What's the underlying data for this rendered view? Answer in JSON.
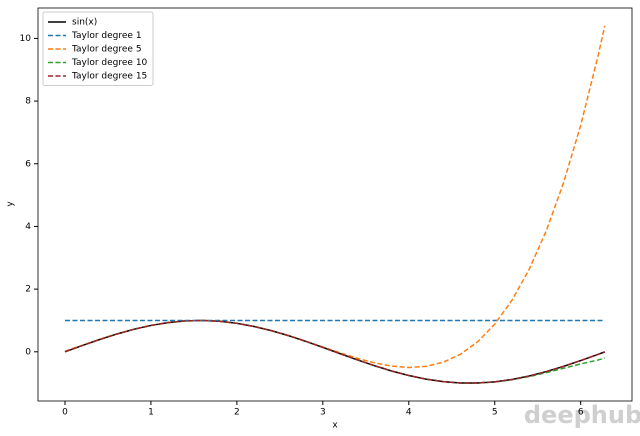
{
  "chart_data": {
    "type": "line",
    "x_label": "x",
    "y_label": "y",
    "x": [
      0,
      0.2,
      0.4,
      0.6,
      0.8,
      1.0,
      1.2,
      1.4,
      1.6,
      1.8,
      2.0,
      2.2,
      2.4,
      2.6,
      2.8,
      3.0,
      3.2,
      3.4,
      3.6,
      3.8,
      4.0,
      4.2,
      4.4,
      4.6,
      4.8,
      5.0,
      5.2,
      5.4,
      5.6,
      5.8,
      6.0,
      6.2,
      6.28
    ],
    "series": [
      {
        "name": "sin(x)",
        "color": "#000000",
        "dash": false,
        "values": [
          0,
          0.199,
          0.389,
          0.565,
          0.717,
          0.841,
          0.932,
          0.985,
          1.0,
          0.974,
          0.909,
          0.808,
          0.675,
          0.516,
          0.335,
          0.141,
          -0.058,
          -0.256,
          -0.443,
          -0.612,
          -0.757,
          -0.872,
          -0.952,
          -0.994,
          -0.996,
          -0.959,
          -0.883,
          -0.773,
          -0.631,
          -0.465,
          -0.279,
          -0.083,
          -0.003
        ]
      },
      {
        "name": "Taylor degree 1",
        "color": "#1f77b4",
        "dash": true,
        "values": [
          1,
          1,
          1,
          1,
          1,
          1,
          1,
          1,
          1,
          1,
          1,
          1,
          1,
          1,
          1,
          1,
          1,
          1,
          1,
          1,
          1,
          1,
          1,
          1,
          1,
          1,
          1,
          1,
          1,
          1,
          1,
          1,
          1
        ]
      },
      {
        "name": "Taylor degree 5",
        "color": "#ff7f0e",
        "dash": true,
        "values": [
          0.02,
          0.208,
          0.393,
          0.566,
          0.718,
          0.842,
          0.932,
          0.985,
          1.0,
          0.974,
          0.909,
          0.809,
          0.676,
          0.517,
          0.34,
          0.153,
          -0.034,
          -0.207,
          -0.352,
          -0.456,
          -0.5,
          -0.465,
          -0.333,
          -0.08,
          0.317,
          0.882,
          1.643,
          2.627,
          3.864,
          5.387,
          7.227,
          9.418,
          10.4
        ]
      },
      {
        "name": "Taylor degree 10",
        "color": "#2ca02c",
        "dash": true,
        "values": [
          0,
          0.199,
          0.389,
          0.565,
          0.717,
          0.841,
          0.932,
          0.985,
          1.0,
          0.974,
          0.909,
          0.808,
          0.675,
          0.516,
          0.335,
          0.141,
          -0.058,
          -0.256,
          -0.443,
          -0.612,
          -0.757,
          -0.872,
          -0.952,
          -0.994,
          -0.997,
          -0.964,
          -0.893,
          -0.792,
          -0.666,
          -0.526,
          -0.387,
          -0.264,
          -0.2
        ]
      },
      {
        "name": "Taylor degree 15",
        "color": "#a0202a",
        "dash": true,
        "values": [
          0,
          0.199,
          0.389,
          0.565,
          0.717,
          0.841,
          0.932,
          0.985,
          1.0,
          0.974,
          0.909,
          0.808,
          0.675,
          0.516,
          0.335,
          0.141,
          -0.058,
          -0.256,
          -0.443,
          -0.612,
          -0.757,
          -0.872,
          -0.952,
          -0.994,
          -0.996,
          -0.959,
          -0.883,
          -0.773,
          -0.631,
          -0.465,
          -0.28,
          -0.085,
          -0.006
        ]
      }
    ],
    "xlim": [
      -0.314,
      6.597
    ],
    "ylim": [
      -1.57,
      10.97
    ],
    "xticks": [
      0,
      1,
      2,
      3,
      4,
      5,
      6
    ],
    "yticks": [
      0,
      2,
      4,
      6,
      8,
      10
    ],
    "legend": "upper-left",
    "grid": false,
    "watermark": "deephub"
  }
}
